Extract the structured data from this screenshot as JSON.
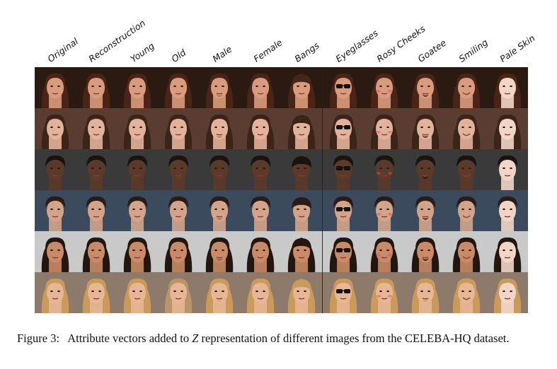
{
  "columns": [
    "Original",
    "Reconstruction",
    "Young",
    "Old",
    "Male",
    "Female",
    "Bangs",
    "Eyeglasses",
    "Rosy Cheeks",
    "Goatee",
    "Smiling",
    "Pale Skin"
  ],
  "rows": [
    {
      "bg": "#2a1a12",
      "hair": "#4a2416",
      "skin": "#d99b7e",
      "hairStyle": "long"
    },
    {
      "bg": "#5a3d30",
      "hair": "#3d2418",
      "skin": "#e2b29a",
      "hairStyle": "long"
    },
    {
      "bg": "#3a3a3a",
      "hair": "#1a1410",
      "skin": "#5b3a2a",
      "hairStyle": "short"
    },
    {
      "bg": "#3b4a5c",
      "hair": "#2a1c14",
      "skin": "#d2a58a",
      "hairStyle": "short"
    },
    {
      "bg": "#c9c9c9",
      "hair": "#22160f",
      "skin": "#c98b67",
      "hairStyle": "long"
    },
    {
      "bg": "#8e7a6a",
      "hair": "#c99a5a",
      "skin": "#e6b695",
      "hairStyle": "long"
    }
  ],
  "caption": {
    "number": "Figure 3:",
    "text_before": "Attribute vectors added to",
    "symbol": "Z",
    "text_after": "representation of different images from the CELEBA-HQ dataset."
  }
}
